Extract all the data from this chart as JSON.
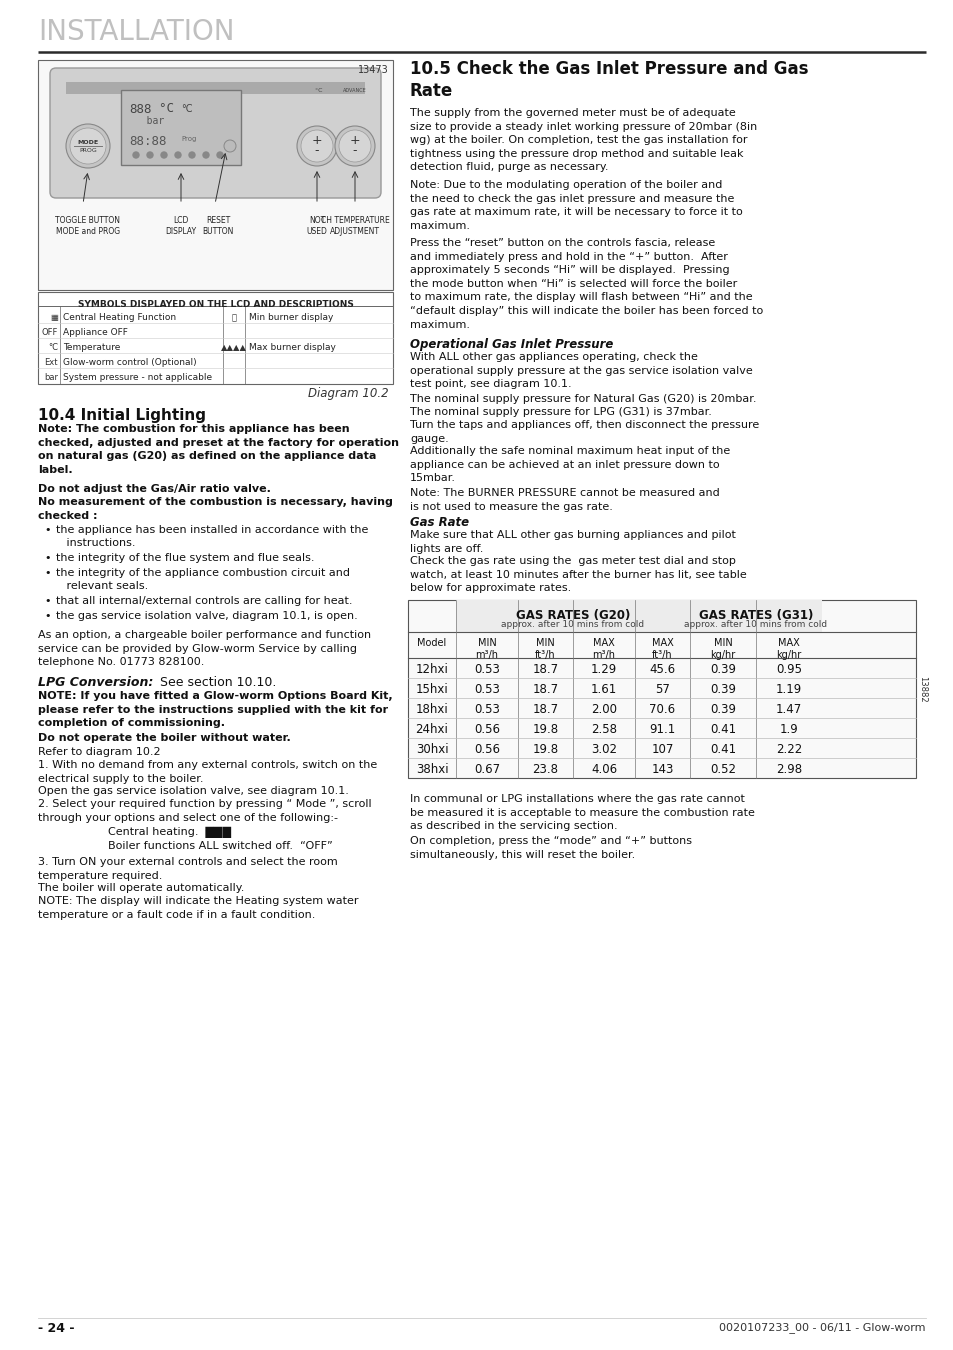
{
  "bg_color": "#ffffff",
  "title": "INSTALLATION",
  "title_color": "#c0c0c0",
  "title_fontsize": 20,
  "line_color": "#333333",
  "text_color": "#222222",
  "footer_left": "- 24 -",
  "footer_right": "0020107233_00 - 06/11 - Glow-worm",
  "diagram_number": "13473",
  "diagram_label": "Diagram 10.2",
  "table_sid": "13882",
  "gas_rows": [
    [
      "12hxi",
      "0.53",
      "18.7",
      "1.29",
      "45.6",
      "0.39",
      "0.95"
    ],
    [
      "15hxi",
      "0.53",
      "18.7",
      "1.61",
      "57",
      "0.39",
      "1.19"
    ],
    [
      "18hxi",
      "0.53",
      "18.7",
      "2.00",
      "70.6",
      "0.39",
      "1.47"
    ],
    [
      "24hxi",
      "0.56",
      "19.8",
      "2.58",
      "91.1",
      "0.41",
      "1.9"
    ],
    [
      "30hxi",
      "0.56",
      "19.8",
      "3.02",
      "107",
      "0.41",
      "2.22"
    ],
    [
      "38hxi",
      "0.67",
      "23.8",
      "4.06",
      "143",
      "0.52",
      "2.98"
    ]
  ]
}
